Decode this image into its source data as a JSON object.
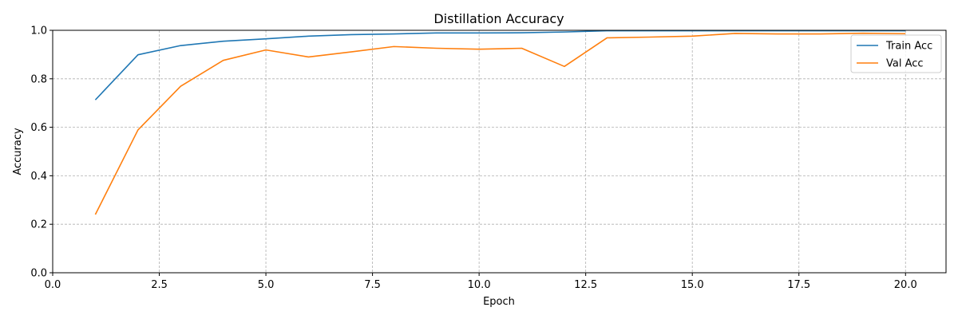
{
  "chart_data": {
    "type": "line",
    "title": "Distillation Accuracy",
    "xlabel": "Epoch",
    "ylabel": "Accuracy",
    "xlim": [
      0,
      20.95
    ],
    "ylim": [
      0,
      1.0
    ],
    "xticks": [
      0.0,
      2.5,
      5.0,
      7.5,
      10.0,
      12.5,
      15.0,
      17.5,
      20.0
    ],
    "xtick_labels": [
      "0.0",
      "2.5",
      "5.0",
      "7.5",
      "10.0",
      "12.5",
      "15.0",
      "17.5",
      "20.0"
    ],
    "yticks": [
      0.0,
      0.2,
      0.4,
      0.6,
      0.8,
      1.0
    ],
    "ytick_labels": [
      "0.0",
      "0.2",
      "0.4",
      "0.6",
      "0.8",
      "1.0"
    ],
    "grid": true,
    "legend_position": "top-right",
    "x": [
      1,
      2,
      3,
      4,
      5,
      6,
      7,
      8,
      9,
      10,
      11,
      12,
      13,
      14,
      15,
      16,
      17,
      18,
      19,
      20
    ],
    "series": [
      {
        "name": "Train Acc",
        "color": "#1f77b4",
        "values": [
          0.713,
          0.899,
          0.937,
          0.955,
          0.965,
          0.976,
          0.982,
          0.985,
          0.989,
          0.989,
          0.99,
          0.993,
          0.998,
          0.998,
          0.998,
          0.998,
          0.998,
          0.998,
          0.998,
          0.998
        ]
      },
      {
        "name": "Val Acc",
        "color": "#ff7f0e",
        "values": [
          0.24,
          0.589,
          0.769,
          0.876,
          0.919,
          0.89,
          0.911,
          0.933,
          0.926,
          0.922,
          0.926,
          0.851,
          0.969,
          0.972,
          0.976,
          0.987,
          0.985,
          0.985,
          0.988,
          0.986
        ]
      }
    ]
  }
}
